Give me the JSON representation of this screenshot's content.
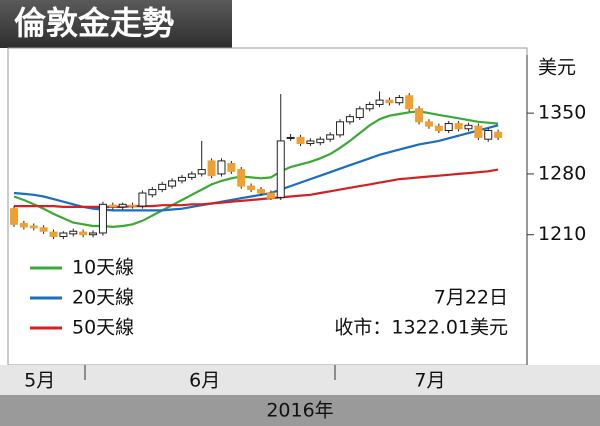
{
  "chart_data": {
    "type": "candlestick",
    "title": "倫敦金走勢",
    "y_unit": "美元",
    "x_label": "2016年",
    "categories": [
      null,
      null,
      null,
      null,
      null,
      null,
      null,
      null,
      null,
      null,
      null,
      null,
      null,
      null,
      null,
      null,
      null,
      null,
      null,
      null,
      null,
      null,
      null,
      null,
      null,
      null,
      null,
      null,
      null,
      null,
      null,
      null,
      null,
      null,
      null,
      null,
      null,
      null,
      null,
      null,
      null,
      null,
      null,
      null,
      null,
      null,
      null,
      null,
      null,
      null
    ],
    "open": [
      1240,
      1223,
      1220,
      1218,
      1213,
      1208,
      1211,
      1213,
      1210,
      1212,
      1244,
      1242,
      1244,
      1243,
      1256,
      1262,
      1266,
      1272,
      1276,
      1280,
      1295,
      1280,
      1292,
      1285,
      1266,
      1262,
      1258,
      1253,
      1322,
      1322,
      1315,
      1316,
      1320,
      1325,
      1340,
      1345,
      1355,
      1360,
      1365,
      1362,
      1370,
      1355,
      1340,
      1335,
      1330,
      1338,
      1332,
      1335,
      1320,
      1328
    ],
    "high": [
      1243,
      1226,
      1223,
      1221,
      1216,
      1214,
      1217,
      1216,
      1215,
      1248,
      1247,
      1247,
      1247,
      1261,
      1265,
      1271,
      1275,
      1279,
      1283,
      1318,
      1298,
      1298,
      1295,
      1288,
      1269,
      1265,
      1261,
      1372,
      1326,
      1325,
      1321,
      1323,
      1328,
      1343,
      1349,
      1358,
      1363,
      1375,
      1368,
      1371,
      1373,
      1358,
      1343,
      1338,
      1341,
      1341,
      1339,
      1338,
      1333,
      1331
    ],
    "low": [
      1219,
      1216,
      1215,
      1211,
      1205,
      1205,
      1208,
      1207,
      1207,
      1209,
      1239,
      1239,
      1240,
      1240,
      1253,
      1259,
      1263,
      1269,
      1273,
      1277,
      1275,
      1277,
      1280,
      1263,
      1259,
      1255,
      1250,
      1250,
      1318,
      1312,
      1312,
      1313,
      1317,
      1322,
      1337,
      1342,
      1352,
      1357,
      1359,
      1359,
      1352,
      1337,
      1332,
      1327,
      1327,
      1329,
      1329,
      1319,
      1317,
      1319
    ],
    "close": [
      1222,
      1219,
      1218,
      1214,
      1208,
      1212,
      1214,
      1210,
      1212,
      1245,
      1242,
      1245,
      1243,
      1258,
      1262,
      1268,
      1272,
      1276,
      1280,
      1285,
      1278,
      1295,
      1283,
      1266,
      1262,
      1258,
      1252,
      1318,
      1322,
      1315,
      1318,
      1320,
      1325,
      1340,
      1346,
      1355,
      1360,
      1365,
      1362,
      1368,
      1355,
      1340,
      1335,
      1330,
      1338,
      1332,
      1336,
      1322,
      1330,
      1322.01
    ],
    "up_color": "#ffffff",
    "down_color": "#f0a030",
    "series": [
      {
        "name": "10天線",
        "color": "#3aaa35",
        "values": [
          1254,
          1250,
          1245,
          1240,
          1234,
          1229,
          1224,
          1222,
          1220,
          1220,
          1219,
          1220,
          1222,
          1226,
          1232,
          1238,
          1244,
          1250,
          1256,
          1262,
          1268,
          1272,
          1275,
          1277,
          1276,
          1275,
          1276,
          1283,
          1288,
          1291,
          1294,
          1298,
          1303,
          1310,
          1318,
          1327,
          1336,
          1343,
          1347,
          1349,
          1351,
          1352,
          1350,
          1348,
          1346,
          1344,
          1342,
          1340,
          1339,
          1338
        ]
      },
      {
        "name": "20天線",
        "color": "#1a6fc0",
        "values": [
          1258,
          1257,
          1256,
          1254,
          1251,
          1248,
          1245,
          1242,
          1240,
          1239,
          1238,
          1238,
          1238,
          1238,
          1238,
          1238,
          1239,
          1240,
          1242,
          1244,
          1246,
          1248,
          1250,
          1252,
          1254,
          1256,
          1258,
          1262,
          1266,
          1270,
          1274,
          1278,
          1282,
          1286,
          1290,
          1294,
          1298,
          1302,
          1305,
          1308,
          1311,
          1314,
          1316,
          1318,
          1321,
          1324,
          1327,
          1330,
          1333,
          1336
        ]
      },
      {
        "name": "50天線",
        "color": "#d42020",
        "values": [
          1243,
          1243,
          1243,
          1243,
          1243,
          1242,
          1242,
          1242,
          1242,
          1242,
          1242,
          1242,
          1243,
          1243,
          1243,
          1244,
          1244,
          1244,
          1245,
          1245,
          1246,
          1247,
          1248,
          1249,
          1250,
          1251,
          1252,
          1253,
          1254,
          1255,
          1256,
          1258,
          1260,
          1262,
          1264,
          1266,
          1268,
          1270,
          1272,
          1274,
          1275,
          1276,
          1277,
          1278,
          1279,
          1280,
          1281,
          1282,
          1283,
          1285
        ]
      }
    ],
    "ylim": [
      1060,
      1425
    ],
    "yticks": [
      1210,
      1280,
      1350
    ],
    "xticks": [
      {
        "value": 2.6,
        "label": "5月"
      },
      {
        "value": 19.3,
        "label": "6月"
      },
      {
        "value": 42.1,
        "label": "7月"
      }
    ],
    "annotations": [
      "7月22日",
      "收市：1322.01美元"
    ]
  }
}
